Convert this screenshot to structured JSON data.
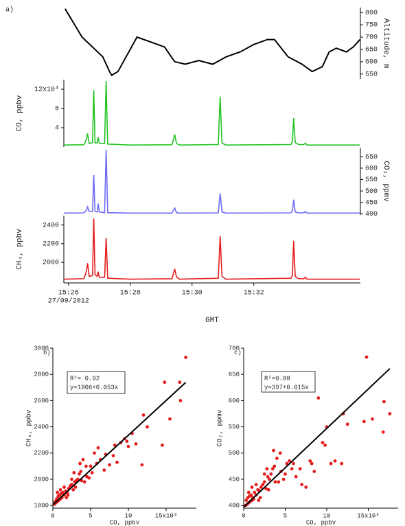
{
  "chart_data": [
    {
      "type": "line",
      "panel_label": "a)",
      "ylabel": "Altitude, m",
      "y_axis": "right",
      "color": "#000000",
      "x": [
        25.89,
        26.44,
        27.11,
        27.33,
        27.4,
        27.6,
        28.22,
        28.89,
        29.11,
        29.44,
        29.78,
        30.22,
        30.67,
        31.11,
        31.56,
        32.0,
        32.44,
        32.67,
        33.11,
        33.56,
        33.89,
        34.22,
        34.44,
        34.67,
        35.0,
        35.22,
        35.44
      ],
      "values": [
        815,
        700,
        620,
        560,
        545,
        560,
        700,
        670,
        660,
        600,
        590,
        605,
        590,
        620,
        640,
        670,
        690,
        690,
        620,
        590,
        560,
        580,
        640,
        655,
        640,
        660,
        690
      ],
      "ylim": [
        530,
        820
      ],
      "yticks": [
        550,
        600,
        650,
        700,
        750,
        800
      ]
    },
    {
      "type": "line",
      "ylabel": "CO, ppbv",
      "y_axis": "left",
      "color": "#22c322",
      "x": [
        25.85,
        26.5,
        26.58,
        26.62,
        26.67,
        26.78,
        26.82,
        26.86,
        26.93,
        26.96,
        27.0,
        27.17,
        27.22,
        27.27,
        28.0,
        29.35,
        29.4,
        29.44,
        29.5,
        29.6,
        30.85,
        30.91,
        30.97,
        31.1,
        33.2,
        33.25,
        33.29,
        33.34,
        33.45,
        33.62,
        33.67,
        33.72,
        35.44
      ],
      "values": [
        400,
        450,
        1500,
        2800,
        700,
        900,
        11800,
        900,
        800,
        2000,
        800,
        700,
        13700,
        600,
        400,
        450,
        1500,
        2600,
        700,
        400,
        500,
        10500,
        800,
        400,
        500,
        1200,
        6000,
        900,
        500,
        500,
        800,
        400,
        400
      ],
      "ylim": [
        0,
        14000
      ],
      "yticks": [
        {
          "value": 4000,
          "label": "4"
        },
        {
          "value": 8000,
          "label": "8"
        },
        {
          "value": 12000,
          "label": "12x10³"
        }
      ]
    },
    {
      "type": "line",
      "ylabel": "CO₂, ppmv",
      "y_axis": "right",
      "color": "#6b6bf5",
      "x": [
        25.85,
        26.5,
        26.58,
        26.62,
        26.67,
        26.78,
        26.82,
        26.86,
        26.93,
        26.96,
        27.0,
        27.17,
        27.22,
        27.27,
        28.0,
        29.35,
        29.4,
        29.44,
        29.5,
        29.6,
        30.85,
        30.91,
        30.97,
        31.1,
        33.2,
        33.25,
        33.29,
        33.34,
        33.45,
        33.62,
        33.67,
        33.72,
        35.44
      ],
      "values": [
        403,
        404,
        415,
        430,
        410,
        410,
        570,
        412,
        408,
        445,
        408,
        405,
        680,
        405,
        403,
        403,
        415,
        425,
        405,
        403,
        404,
        490,
        408,
        403,
        404,
        412,
        462,
        408,
        404,
        404,
        410,
        403,
        403
      ],
      "ylim": [
        395,
        690
      ],
      "yticks": [
        400,
        450,
        500,
        550,
        600,
        650
      ]
    },
    {
      "type": "line",
      "ylabel": "CH₄, ppbv",
      "y_axis": "left",
      "color": "#e51c1c",
      "x": [
        25.85,
        26.5,
        26.58,
        26.62,
        26.67,
        26.78,
        26.82,
        26.86,
        26.93,
        26.96,
        27.0,
        27.17,
        27.22,
        27.27,
        28.0,
        29.35,
        29.4,
        29.44,
        29.5,
        29.6,
        30.85,
        30.91,
        30.97,
        31.1,
        33.2,
        33.25,
        33.29,
        33.34,
        33.45,
        33.62,
        33.67,
        33.72,
        35.44
      ],
      "values": [
        1820,
        1825,
        1900,
        1990,
        1850,
        1860,
        2470,
        1870,
        1850,
        1900,
        1840,
        1840,
        2260,
        1830,
        1820,
        1825,
        1880,
        1930,
        1840,
        1820,
        1830,
        2280,
        1850,
        1820,
        1830,
        1860,
        2230,
        1850,
        1825,
        1825,
        1840,
        1820,
        1820
      ],
      "ylim": [
        1780,
        2500
      ],
      "yticks": [
        2000,
        2200,
        2400
      ],
      "xlim": [
        25.85,
        35.45
      ],
      "xticks": [
        {
          "value": 26,
          "label": "15:26"
        },
        {
          "value": 28,
          "label": "15:28"
        },
        {
          "value": 30,
          "label": "15:30"
        },
        {
          "value": 32,
          "label": "15:32"
        }
      ],
      "date_label": "27/09/2012",
      "xlabel": "GMT"
    },
    {
      "type": "scatter",
      "panel_label": "b)",
      "xlabel": "CO, ppbv",
      "ylabel": "CH₄, ppbv",
      "color": "#e51c1c",
      "x": [
        200,
        400,
        600,
        800,
        1000,
        1200,
        300,
        500,
        700,
        900,
        1100,
        1300,
        1500,
        1700,
        1900,
        2100,
        2300,
        2500,
        2700,
        2900,
        3100,
        3300,
        3500,
        3700,
        4000,
        4200,
        4500,
        5000,
        5200,
        5500,
        5800,
        6000,
        6300,
        7000,
        8000,
        8200,
        8500,
        9000,
        9500,
        9800,
        10000,
        10500,
        11000,
        11800,
        12000,
        12500,
        14500,
        14800,
        15500,
        16800,
        16900,
        17600,
        1500,
        2000,
        2500,
        3000,
        3800,
        4400,
        6800,
        7500,
        600,
        1000,
        1800,
        2800,
        3600,
        4800
      ],
      "values": [
        1810,
        1820,
        1830,
        1840,
        1850,
        1860,
        1830,
        1850,
        1870,
        1880,
        1890,
        1900,
        1880,
        1910,
        1900,
        1930,
        1950,
        1960,
        1920,
        1980,
        1990,
        2000,
        2040,
        2060,
        2150,
        1980,
        2020,
        2100,
        2050,
        2200,
        2120,
        2240,
        2150,
        2190,
        2180,
        2260,
        2130,
        2280,
        2310,
        2290,
        2250,
        2350,
        2270,
        2110,
        2490,
        2400,
        2260,
        2740,
        2460,
        2740,
        2600,
        2930,
        1940,
        1880,
        2000,
        1940,
        1990,
        2100,
        2070,
        2110,
        1900,
        1920,
        1860,
        2050,
        2120,
        2010
      ],
      "xlim": [
        0,
        19000
      ],
      "xticks": [
        {
          "value": 0,
          "label": "0"
        },
        {
          "value": 5000,
          "label": "5"
        },
        {
          "value": 10000,
          "label": "10"
        },
        {
          "value": 15000,
          "label": "15x10³"
        }
      ],
      "ylim": [
        1780,
        3000
      ],
      "yticks": [
        1800,
        2000,
        2200,
        2400,
        2600,
        2800,
        3000
      ],
      "fit": {
        "intercept": 1806,
        "slope": 0.053,
        "r2_label": "R²= 0.92",
        "label": "y=1806+0.053x"
      }
    },
    {
      "type": "scatter",
      "panel_label": "c)",
      "xlabel": "CO, ppbv",
      "ylabel": "CO₂, ppmv",
      "color": "#e51c1c",
      "x": [
        200,
        400,
        600,
        800,
        1000,
        1200,
        300,
        500,
        700,
        900,
        1100,
        1300,
        1500,
        1700,
        1900,
        2100,
        2300,
        2500,
        2700,
        2900,
        3100,
        3300,
        3500,
        3700,
        4000,
        4200,
        4500,
        5000,
        5200,
        5500,
        5800,
        6000,
        6300,
        7000,
        8000,
        8200,
        8500,
        9000,
        9500,
        9800,
        10000,
        10500,
        11000,
        11800,
        12000,
        12500,
        14500,
        14800,
        15500,
        16800,
        16900,
        17600,
        1500,
        2000,
        2500,
        3000,
        3800,
        4400,
        6800,
        7500,
        600,
        1000,
        1800,
        2800,
        3600,
        4800
      ],
      "values": [
        400,
        402,
        405,
        408,
        410,
        412,
        410,
        415,
        418,
        420,
        415,
        425,
        420,
        430,
        428,
        435,
        440,
        445,
        432,
        455,
        450,
        460,
        470,
        475,
        490,
        445,
        465,
        460,
        480,
        485,
        470,
        480,
        455,
        440,
        485,
        480,
        465,
        605,
        520,
        515,
        550,
        480,
        485,
        480,
        575,
        555,
        560,
        683,
        565,
        540,
        598,
        575,
        440,
        415,
        460,
        430,
        445,
        500,
        470,
        435,
        425,
        435,
        410,
        470,
        505,
        450
      ],
      "xlim": [
        0,
        18600
      ],
      "xticks": [
        {
          "value": 0,
          "label": "0"
        },
        {
          "value": 5000,
          "label": "5"
        },
        {
          "value": 10000,
          "label": "10"
        },
        {
          "value": 15000,
          "label": "15x10³"
        }
      ],
      "ylim": [
        395,
        700
      ],
      "yticks": [
        400,
        450,
        500,
        550,
        600,
        650,
        700
      ],
      "fit": {
        "intercept": 397,
        "slope": 0.015,
        "r2_label": "R²=0.88",
        "label": "y=397+0.015x"
      }
    }
  ]
}
